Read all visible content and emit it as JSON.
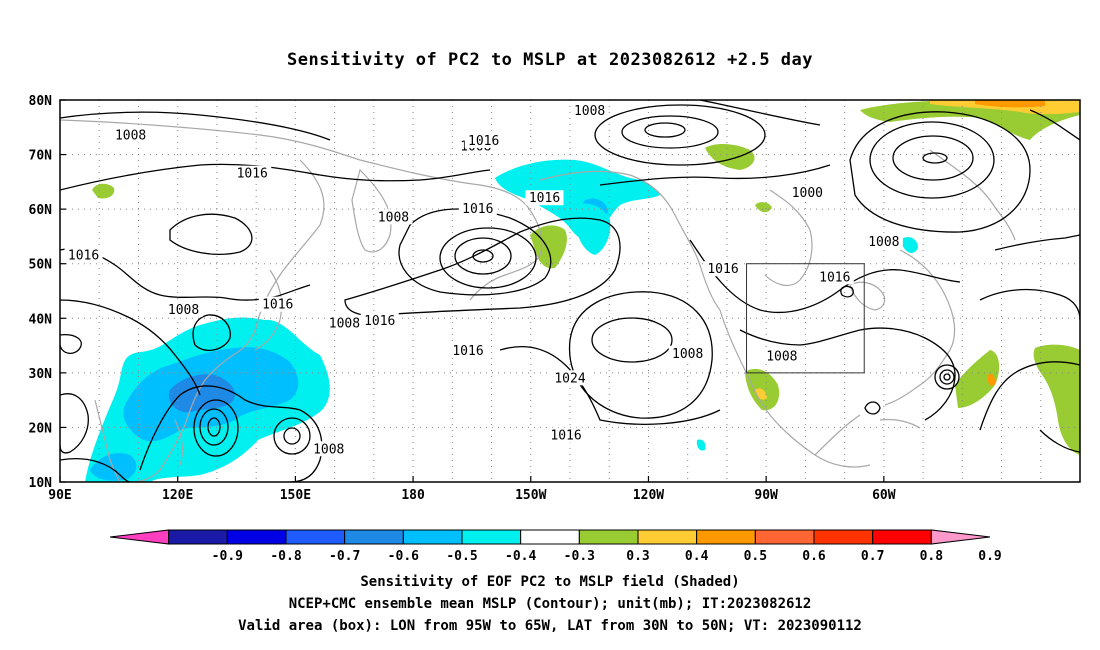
{
  "title": "Sensitivity of PC2 to MSLP at 2023082612 +2.5 day",
  "lat_labels": [
    "80N",
    "70N",
    "60N",
    "50N",
    "40N",
    "30N",
    "20N",
    "10N"
  ],
  "lon_labels": [
    "90E",
    "120E",
    "150E",
    "180",
    "150W",
    "120W",
    "90W",
    "60W"
  ],
  "contour_labels": [
    {
      "text": "1008",
      "lon": 108,
      "lat": 73.5
    },
    {
      "text": "1008",
      "lon": 196,
      "lat": 71.5
    },
    {
      "text": "1016",
      "lon": 139,
      "lat": 66.5
    },
    {
      "text": "1016",
      "lon": -162,
      "lat": 72.5
    },
    {
      "text": "1008",
      "lon": -135,
      "lat": 78
    },
    {
      "text": "1016",
      "lon": -163.5,
      "lat": 60
    },
    {
      "text": "1016",
      "lon": -146.5,
      "lat": 62
    },
    {
      "text": "1008",
      "lon": 175,
      "lat": 58.5
    },
    {
      "text": "1000",
      "lon": -79.5,
      "lat": 63
    },
    {
      "text": "1008",
      "lon": -60,
      "lat": 54
    },
    {
      "text": "1016",
      "lon": -101,
      "lat": 49
    },
    {
      "text": "1016",
      "lon": -72.5,
      "lat": 47.5
    },
    {
      "text": "1016",
      "lon": 96,
      "lat": 51.5
    },
    {
      "text": "1008",
      "lon": 121.5,
      "lat": 41.5
    },
    {
      "text": "1016",
      "lon": 145.5,
      "lat": 42.5
    },
    {
      "text": "1008",
      "lon": 162.5,
      "lat": 39
    },
    {
      "text": "1016",
      "lon": 171.5,
      "lat": 39.5
    },
    {
      "text": "1016",
      "lon": -166,
      "lat": 34
    },
    {
      "text": "1024",
      "lon": -140,
      "lat": 29
    },
    {
      "text": "1008",
      "lon": -110,
      "lat": 33.5
    },
    {
      "text": "1008",
      "lon": -86,
      "lat": 33
    },
    {
      "text": "1016",
      "lon": -141,
      "lat": 18.5
    },
    {
      "text": "1008",
      "lon": 158.5,
      "lat": 16
    }
  ],
  "colorbar": {
    "labels": [
      "-0.9",
      "-0.8",
      "-0.7",
      "-0.6",
      "-0.5",
      "-0.4",
      "-0.3",
      "0.3",
      "0.4",
      "0.5",
      "0.6",
      "0.7",
      "0.8",
      "0.9"
    ],
    "colors": [
      "#ff3fbf",
      "#1a1aa6",
      "#0000e6",
      "#1f5cff",
      "#1f8ae6",
      "#00bfff",
      "#00f0f0",
      "#ffffff",
      "#99cc33",
      "#ffcc33",
      "#ff9900",
      "#ff6633",
      "#ff3300",
      "#ff0000",
      "#ff99cc"
    ]
  },
  "box": {
    "lon_min": -95,
    "lon_max": -65,
    "lat_min": 30,
    "lat_max": 50
  },
  "captions": [
    "Sensitivity of EOF PC2 to MSLP field (Shaded)",
    "NCEP+CMC ensemble mean MSLP (Contour); unit(mb); IT:2023082612",
    "Valid area (box): LON from 95W to 65W, LAT from 30N to 50N; VT: 2023090112"
  ]
}
